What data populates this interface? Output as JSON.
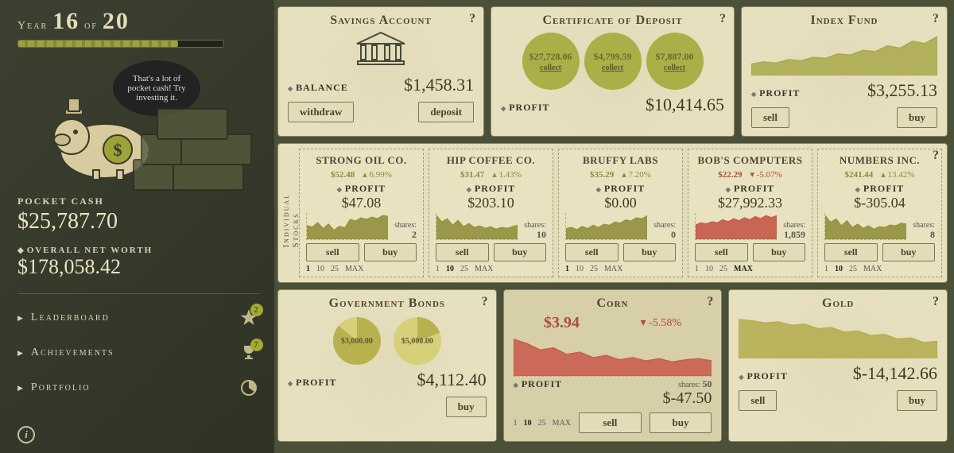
{
  "colors": {
    "accent": "#a3aa2f",
    "olive": "#8c8a32",
    "red": "#c24f40",
    "card": "#e7e0bf"
  },
  "year": {
    "label": "Year",
    "current": "16",
    "sep": "of",
    "total": "20",
    "progress_pct": 78
  },
  "bubble": "That's a lot of pocket cash! Try investing it.",
  "pocket": {
    "label": "POCKET CASH",
    "value": "$25,787.70"
  },
  "networth": {
    "label": "OVERALL NET WORTH",
    "value": "$178,058.42"
  },
  "menu": {
    "leaderboard": {
      "label": "Leaderboard",
      "badge": "2"
    },
    "achievements": {
      "label": "Achievements",
      "badge": "7"
    },
    "portfolio": {
      "label": "Portfolio"
    }
  },
  "labels": {
    "profit": "PROFIT",
    "balance": "BALANCE",
    "shares": "shares:",
    "sell": "sell",
    "buy": "buy",
    "withdraw": "withdraw",
    "deposit": "deposit",
    "collect": "collect",
    "qty": [
      "1",
      "10",
      "25",
      "MAX"
    ]
  },
  "savings": {
    "title": "Savings Account",
    "balance": "$1,458.31"
  },
  "cd": {
    "title": "Certificate of Deposit",
    "profit": "$10,414.65",
    "items": [
      {
        "amt": "$27,728.06"
      },
      {
        "amt": "$4,799.59"
      },
      {
        "amt": "$7,887.00"
      }
    ]
  },
  "index": {
    "title": "Index Fund",
    "profit": "$3,255.13",
    "series": [
      10,
      12,
      11,
      14,
      13,
      16,
      15,
      19,
      18,
      22,
      21,
      26,
      24,
      30,
      28,
      34
    ],
    "color": "#a9a84a"
  },
  "stocks_title": "Individual Stocks",
  "stocks": [
    {
      "name": "STRONG OIL CO.",
      "price": "$52.48",
      "delta": "▴ 6.99%",
      "neg": false,
      "profit": "$47.08",
      "shares": "2",
      "series": [
        18,
        16,
        22,
        14,
        20,
        12,
        17,
        15,
        26,
        24,
        28,
        26,
        29,
        27,
        31,
        30
      ],
      "qty_on": 0
    },
    {
      "name": "HIP COFFEE CO.",
      "price": "$31.47",
      "delta": "▴ 1.43%",
      "neg": false,
      "profit": "$203.10",
      "shares": "10",
      "series": [
        30,
        22,
        26,
        18,
        24,
        16,
        20,
        15,
        17,
        14,
        16,
        13,
        15,
        14,
        16,
        18
      ],
      "qty_on": 1
    },
    {
      "name": "BRUFFY LABS",
      "price": "$35.29",
      "delta": "▴ 7.20%",
      "neg": false,
      "profit": "$0.00",
      "shares": "0",
      "series": [
        10,
        11,
        9,
        12,
        10,
        13,
        11,
        14,
        13,
        16,
        15,
        18,
        17,
        20,
        19,
        22
      ],
      "qty_on": 0
    },
    {
      "name": "BOB'S COMPUTERS",
      "price": "$22.29",
      "delta": "▾ -5.07%",
      "neg": true,
      "profit": "$27,992.33",
      "shares": "1,859",
      "series": [
        14,
        16,
        15,
        17,
        16,
        19,
        17,
        20,
        18,
        21,
        19,
        22,
        20,
        23,
        21,
        23
      ],
      "qty_on": 3
    },
    {
      "name": "NUMBERS INC.",
      "price": "$241.44",
      "delta": "▴ 13.42%",
      "neg": false,
      "profit": "$-305.04",
      "shares": "8",
      "series": [
        28,
        20,
        24,
        16,
        22,
        14,
        18,
        13,
        16,
        12,
        15,
        14,
        17,
        16,
        19,
        18
      ],
      "qty_on": 1
    }
  ],
  "bonds": {
    "title": "Government Bonds",
    "profit": "$4,112.40",
    "pies": [
      {
        "label": "$3,000.00",
        "deg": 310,
        "c1": "#b7b24e",
        "c2": "#d7d07a"
      },
      {
        "label": "$5,000.00",
        "deg": 70,
        "c1": "#b7b24e",
        "c2": "#d7d07a"
      }
    ]
  },
  "corn": {
    "title": "Corn",
    "price": "$3.94",
    "delta": "▾ -5.58%",
    "shares": "50",
    "profit": "$-47.50",
    "series": [
      34,
      30,
      24,
      26,
      20,
      22,
      17,
      19,
      15,
      17,
      14,
      16,
      13,
      15,
      16,
      14
    ],
    "color": "#c9584a",
    "qty_on": 1
  },
  "gold": {
    "title": "Gold",
    "profit": "$-14,142.66",
    "series": [
      34,
      33,
      31,
      32,
      29,
      30,
      26,
      27,
      23,
      24,
      20,
      21,
      17,
      18,
      14,
      15
    ],
    "color": "#b3ac4e"
  }
}
